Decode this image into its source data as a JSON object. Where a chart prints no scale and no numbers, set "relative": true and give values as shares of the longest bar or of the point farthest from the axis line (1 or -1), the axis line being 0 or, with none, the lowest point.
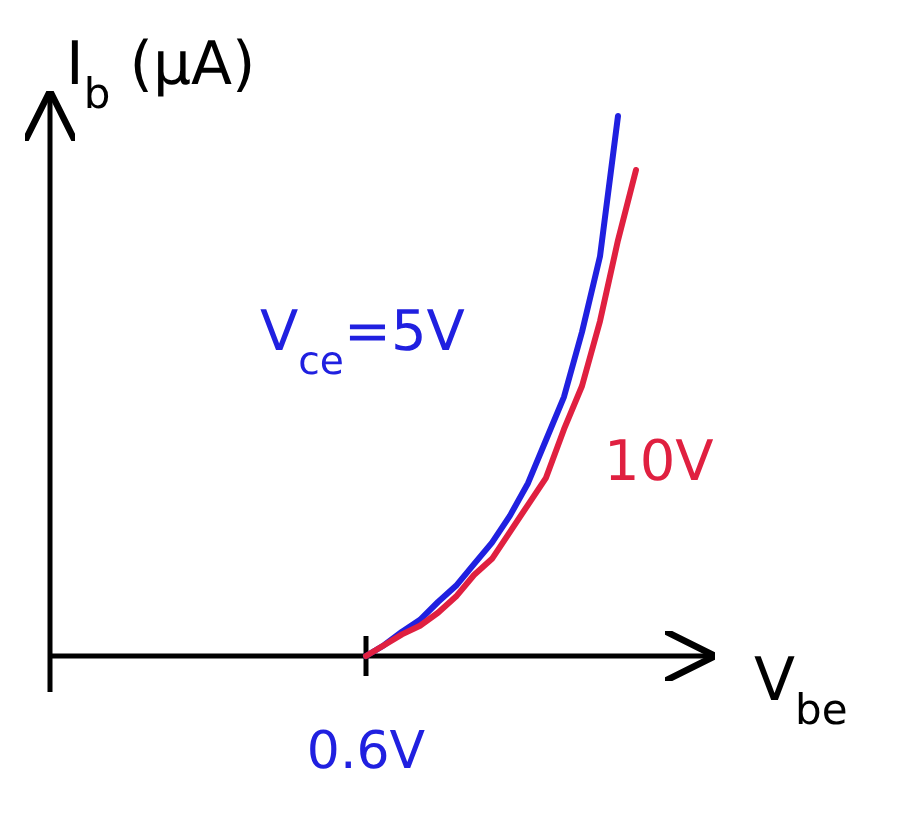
{
  "chart_data": {
    "type": "line",
    "relative": true,
    "xlabel": "V$_{be}$",
    "ylabel": "I$_{b}$ (μA)",
    "grid": false,
    "legend": false,
    "marker": "none",
    "line_style": "solid",
    "annotations": [
      "0.6V"
    ],
    "categories": [
      null,
      null,
      null,
      null,
      null,
      null,
      null,
      null,
      null,
      null,
      null,
      null,
      null,
      null,
      null,
      null,
      null,
      null,
      null,
      null,
      null,
      null,
      null,
      null,
      null,
      null,
      null,
      null,
      null,
      null,
      null,
      null,
      null
    ],
    "series": [
      {
        "name": "V$_{ce}$=5V",
        "color": "#2020e0",
        "values": [
          null,
          null,
          null,
          null,
          null,
          null,
          null,
          null,
          null,
          null,
          null,
          null,
          null,
          null,
          null,
          null,
          null,
          0,
          0.02,
          0.045,
          0.067,
          0.1,
          0.13,
          0.17,
          0.21,
          0.26,
          0.32,
          0.4,
          0.48,
          0.6,
          0.74,
          1,
          null
        ]
      },
      {
        "name": "10V",
        "color": "#e02040",
        "values": [
          null,
          null,
          null,
          null,
          null,
          null,
          null,
          null,
          null,
          null,
          null,
          null,
          null,
          null,
          null,
          null,
          null,
          0,
          0.02,
          0.04,
          0.056,
          0.08,
          0.11,
          0.15,
          0.18,
          0.23,
          0.28,
          0.33,
          0.42,
          0.5,
          0.62,
          0.77,
          0.9
        ]
      }
    ]
  }
}
